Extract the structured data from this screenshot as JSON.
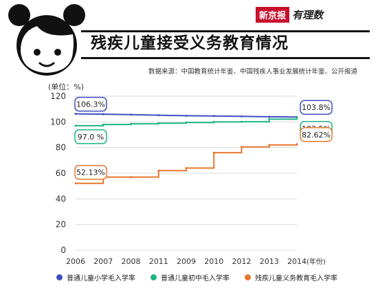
{
  "title": "残疾儿童接受义务教育情况",
  "source": "数据来源：中国教育统计年鉴、中国残疾人事业发展统计年鉴、公开报道",
  "brand": {
    "name": "新京报",
    "sub": "有理数"
  },
  "chart_data": {
    "type": "line",
    "unit_label": "(单位：%)",
    "x_unit": "(年份)",
    "categories": [
      "2006",
      "2007",
      "2008",
      "2011",
      "2009",
      "2010",
      "2012",
      "2013",
      "2014"
    ],
    "ylim": [
      0,
      120
    ],
    "yticks": [
      0,
      20,
      40,
      60,
      80,
      100,
      120
    ],
    "grid": true,
    "legend_position": "bottom",
    "series": [
      {
        "name": "普通儿童小学毛入学率",
        "color": "#3f4fc1",
        "values": [
          106.3,
          106.0,
          105.7,
          105.2,
          104.8,
          104.6,
          104.3,
          104.0,
          103.8
        ],
        "labels": {
          "first": "106.3%",
          "last": "103.8%"
        },
        "step": false
      },
      {
        "name": "普通儿童初中毛入学率",
        "color": "#1db584",
        "values": [
          97.0,
          98.0,
          98.5,
          99.0,
          99.5,
          100.0,
          100.1,
          102.1,
          103.5
        ],
        "labels": {
          "first": "97.0 %",
          "last": "103.5%"
        },
        "step": true
      },
      {
        "name": "残疾儿童义务教育毛入学率",
        "color": "#e8772e",
        "values": [
          52.13,
          57.0,
          57.0,
          62.0,
          64.0,
          76.0,
          80.5,
          82.0,
          82.62
        ],
        "labels": {
          "first": "52.13%",
          "last": "82.62%"
        },
        "step": true
      }
    ]
  }
}
